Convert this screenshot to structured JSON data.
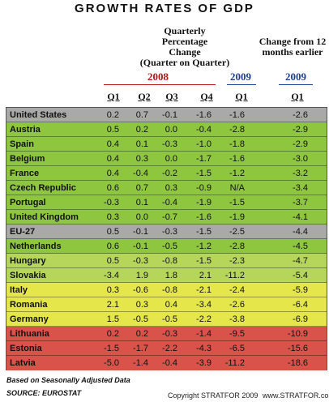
{
  "title": "GROWTH RATES OF GDP",
  "header": {
    "quarterly_note": [
      "Quarterly",
      "Percentage",
      "Change",
      "(Quarter on Quarter)"
    ],
    "annual_note": [
      "Change from 12",
      "months earlier"
    ],
    "year_2008": "2008",
    "year_2009_left": "2009",
    "year_2009_right": "2009",
    "columns": [
      "Q1",
      "Q2",
      "Q3",
      "Q4",
      "Q1",
      "Q1"
    ]
  },
  "colors": {
    "red_year": "#b01717",
    "blue_year": "#1f3f8f",
    "gray": "#a9a9a9",
    "green_strong": "#8ec63f",
    "green_light": "#b5d65a",
    "yellow": "#e4e64a",
    "red": "#d9534a"
  },
  "chart_data": {
    "type": "table",
    "title": "GROWTH RATES OF GDP",
    "columns": [
      "2008 Q1",
      "2008 Q2",
      "2008 Q3",
      "2008 Q4",
      "2009 Q1",
      "2009 Q1 (Change from 12 months earlier)"
    ],
    "rows": [
      {
        "country": "United States",
        "band": "gray",
        "values": [
          "0.2",
          "0.7",
          "-0.1",
          "-1.6",
          "-1.6",
          "-2.6"
        ]
      },
      {
        "country": "Austria",
        "band": "green_strong",
        "values": [
          "0.5",
          "0.2",
          "0.0",
          "-0.4",
          "-2.8",
          "-2.9"
        ]
      },
      {
        "country": "Spain",
        "band": "green_strong",
        "values": [
          "0.4",
          "0.1",
          "-0.3",
          "-1.0",
          "-1.8",
          "-2.9"
        ]
      },
      {
        "country": "Belgium",
        "band": "green_strong",
        "values": [
          "0.4",
          "0.3",
          "0.0",
          "-1.7",
          "-1.6",
          "-3.0"
        ]
      },
      {
        "country": "France",
        "band": "green_strong",
        "values": [
          "0.4",
          "-0.4",
          "-0.2",
          "-1.5",
          "-1.2",
          "-3.2"
        ]
      },
      {
        "country": "Czech Republic",
        "band": "green_strong",
        "values": [
          "0.6",
          "0.7",
          "0.3",
          "-0.9",
          "N/A",
          "-3.4"
        ]
      },
      {
        "country": "Portugal",
        "band": "green_strong",
        "values": [
          "-0.3",
          "0.1",
          "-0.4",
          "-1.9",
          "-1.5",
          "-3.7"
        ]
      },
      {
        "country": "United Kingdom",
        "band": "green_strong",
        "values": [
          "0.3",
          "0.0",
          "-0.7",
          "-1.6",
          "-1.9",
          "-4.1"
        ]
      },
      {
        "country": "EU-27",
        "band": "gray",
        "values": [
          "0.5",
          "-0.1",
          "-0.3",
          "-1.5",
          "-2.5",
          "-4.4"
        ]
      },
      {
        "country": "Netherlands",
        "band": "green_strong",
        "values": [
          "0.6",
          "-0.1",
          "-0.5",
          "-1.2",
          "-2.8",
          "-4.5"
        ]
      },
      {
        "country": "Hungary",
        "band": "green_light",
        "values": [
          "0.5",
          "-0.3",
          "-0.8",
          "-1.5",
          "-2.3",
          "-4.7"
        ]
      },
      {
        "country": "Slovakia",
        "band": "green_light",
        "values": [
          "-3.4",
          "1.9",
          "1.8",
          "2.1",
          "-11.2",
          "-5.4"
        ]
      },
      {
        "country": "Italy",
        "band": "yellow",
        "values": [
          "0.3",
          "-0.6",
          "-0.8",
          "-2.1",
          "-2.4",
          "-5.9"
        ]
      },
      {
        "country": "Romania",
        "band": "yellow",
        "values": [
          "2.1",
          "0.3",
          "0.4",
          "-3.4",
          "-2.6",
          "-6.4"
        ]
      },
      {
        "country": "Germany",
        "band": "yellow",
        "values": [
          "1.5",
          "-0.5",
          "-0.5",
          "-2.2",
          "-3.8",
          "-6.9"
        ]
      },
      {
        "country": "Lithuania",
        "band": "red",
        "values": [
          "0.2",
          "0.2",
          "-0.3",
          "-1.4",
          "-9.5",
          "-10.9"
        ]
      },
      {
        "country": "Estonia",
        "band": "red",
        "values": [
          "-1.5",
          "-1.7",
          "-2.2",
          "-4.3",
          "-6.5",
          "-15.6"
        ]
      },
      {
        "country": "Latvia",
        "band": "red",
        "values": [
          "-5.0",
          "-1.4",
          "-0.4",
          "-3.9",
          "-11.2",
          "-18.6"
        ]
      }
    ]
  },
  "footer": {
    "basis": "Based on Seasonally Adjusted Data",
    "source": "SOURCE:  EUROSTAT",
    "copyright": "Copyright STRATFOR 2009",
    "website": "www.STRATFOR.com"
  }
}
